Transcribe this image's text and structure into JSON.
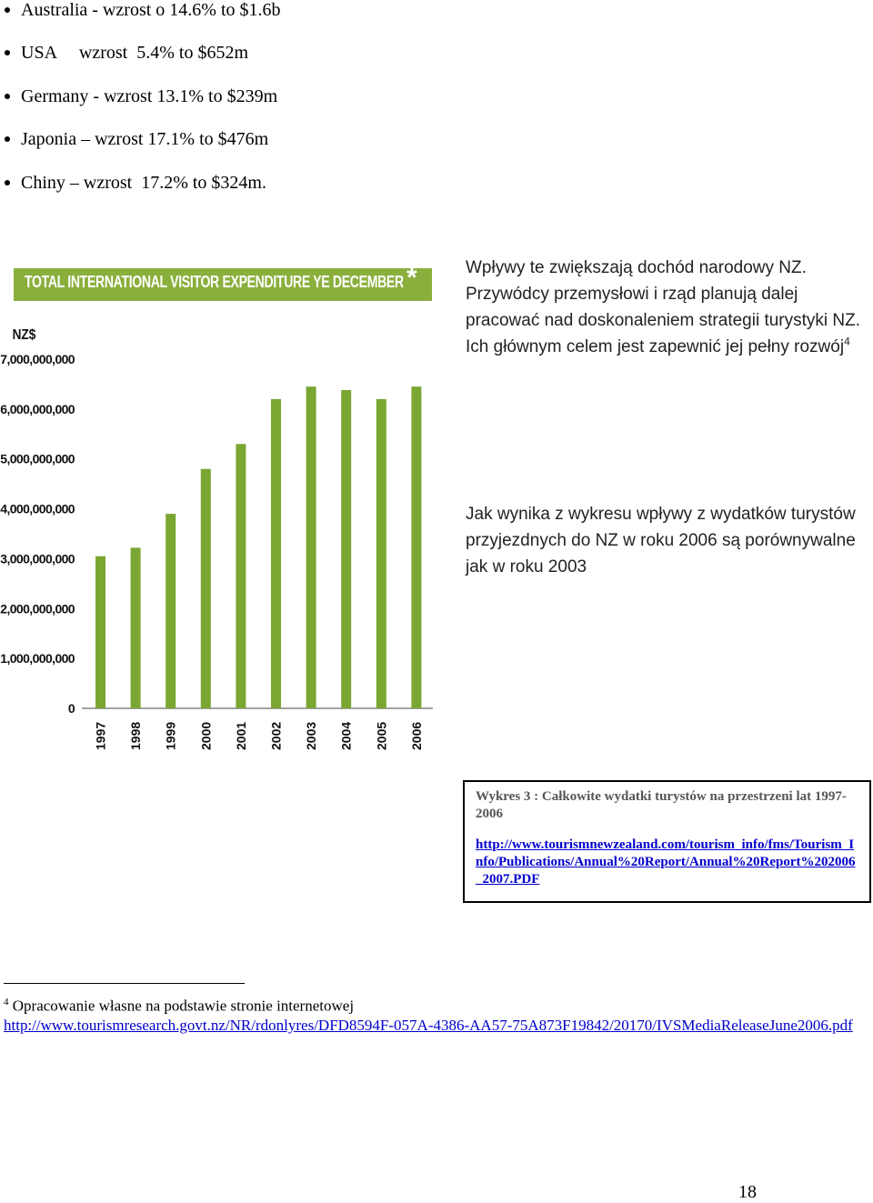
{
  "bullets": [
    "Australia  - wzrost o 14.6% to $1.6b",
    "USA     wzrost  5.4% to $652m",
    "Germany - wzrost 13.1% to $239m",
    "Japonia – wzrost 17.1% to $476m",
    "Chiny – wzrost  17.2% to $324m."
  ],
  "colors": {
    "bar": "#7aa632",
    "title_bg": "#8aaf3c",
    "link": "#0000cc"
  },
  "chart_data": {
    "type": "bar",
    "title": "TOTAL INTERNATIONAL VISITOR EXPENDITURE YE DECEMBER",
    "title_mark": "*",
    "ylabel": "NZ$",
    "ylim": [
      0,
      7000000000
    ],
    "yticks": [
      "0",
      "1,000,000,000",
      "2,000,000,000",
      "3,000,000,000",
      "4,000,000,000",
      "5,000,000,000",
      "6,000,000,000",
      "7,000,000,000"
    ],
    "categories": [
      "1997",
      "1998",
      "1999",
      "2000",
      "2001",
      "2002",
      "2003",
      "2004",
      "2005",
      "2006"
    ],
    "values": [
      3050000000,
      3220000000,
      3900000000,
      4800000000,
      5300000000,
      6200000000,
      6450000000,
      6380000000,
      6200000000,
      6450000000
    ],
    "grid": false
  },
  "right_text": {
    "para1": "Wpływy  te zwiększają dochód narodowy NZ. Przywódcy przemysłowi i rząd planują dalej pracować nad doskonaleniem strategii turystyki NZ. Ich głównym celem jest zapewnić jej pełny rozwój",
    "para1_ref": "4",
    "para2": "Jak wynika z wykresu wpływy z wydatków turystów przyjezdnych do NZ w roku 2006 są porównywalne jak w roku 2003"
  },
  "caption": {
    "text": "Wykres 3 :  Całkowite wydatki turystów na przestrzeni lat 1997-2006",
    "link": "http://www.tourismnewzealand.com/tourism_info/fms/Tourism_Info/Publications/Annual%20Report/Annual%20Report%202006_2007.PDF"
  },
  "footnote": {
    "number": "4",
    "text": " Opracowanie własne na podstawie stronie internetowej",
    "link": "http://www.tourismresearch.govt.nz/NR/rdonlyres/DFD8594F-057A-4386-AA57-75A873F19842/20170/IVSMediaReleaseJune2006.pdf"
  },
  "page_number": "18"
}
